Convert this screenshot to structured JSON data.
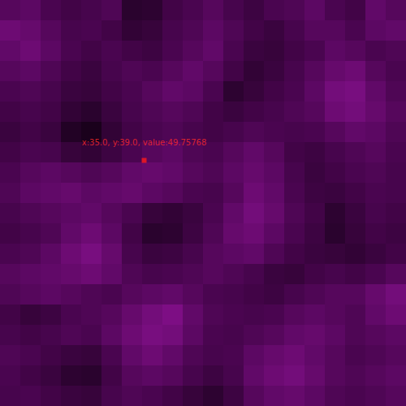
{
  "chart_data": {
    "type": "heatmap",
    "xlim": [
      -0.5,
      99.5
    ],
    "ylim": [
      -0.5,
      99.5
    ],
    "tick_labels": false,
    "grid": false,
    "color_range": [
      0,
      80
    ],
    "cells": [
      [
        45,
        48,
        40,
        35,
        38,
        42,
        20,
        22,
        35,
        40,
        45,
        38,
        32,
        40,
        42,
        48,
        40,
        35,
        50,
        45
      ],
      [
        55,
        52,
        45,
        38,
        40,
        35,
        25,
        28,
        38,
        42,
        48,
        42,
        35,
        30,
        38,
        45,
        45,
        40,
        48,
        50
      ],
      [
        50,
        55,
        48,
        40,
        35,
        40,
        35,
        32,
        40,
        45,
        50,
        40,
        30,
        28,
        35,
        40,
        48,
        45,
        40,
        42
      ],
      [
        45,
        48,
        42,
        35,
        30,
        38,
        42,
        40,
        45,
        50,
        45,
        35,
        25,
        30,
        38,
        45,
        52,
        55,
        45,
        40
      ],
      [
        40,
        42,
        38,
        30,
        28,
        35,
        40,
        45,
        50,
        48,
        40,
        22,
        28,
        35,
        40,
        48,
        58,
        60,
        50,
        42
      ],
      [
        35,
        38,
        35,
        25,
        20,
        30,
        38,
        42,
        45,
        42,
        35,
        30,
        35,
        38,
        42,
        45,
        55,
        58,
        52,
        45
      ],
      [
        30,
        35,
        30,
        15,
        10,
        25,
        35,
        40,
        42,
        38,
        35,
        38,
        42,
        40,
        38,
        40,
        45,
        50,
        48,
        42
      ],
      [
        35,
        40,
        38,
        28,
        25,
        32,
        40,
        45,
        48,
        42,
        40,
        45,
        50,
        45,
        35,
        32,
        38,
        42,
        45,
        40
      ],
      [
        40,
        45,
        48,
        45,
        42,
        45,
        50,
        52,
        50,
        45,
        42,
        48,
        52,
        48,
        38,
        30,
        35,
        40,
        42,
        38
      ],
      [
        42,
        48,
        50,
        52,
        48,
        50,
        52,
        48,
        45,
        40,
        38,
        45,
        55,
        50,
        40,
        32,
        30,
        35,
        40,
        38
      ],
      [
        38,
        42,
        45,
        48,
        50,
        45,
        40,
        28,
        25,
        30,
        40,
        50,
        58,
        52,
        42,
        35,
        22,
        30,
        38,
        35
      ],
      [
        35,
        38,
        42,
        50,
        55,
        48,
        35,
        20,
        22,
        32,
        42,
        52,
        55,
        48,
        40,
        32,
        20,
        28,
        35,
        32
      ],
      [
        40,
        42,
        48,
        55,
        60,
        52,
        38,
        30,
        32,
        38,
        45,
        48,
        50,
        42,
        35,
        30,
        28,
        25,
        30,
        35
      ],
      [
        45,
        48,
        50,
        52,
        55,
        50,
        42,
        38,
        40,
        42,
        45,
        42,
        38,
        30,
        28,
        35,
        38,
        35,
        40,
        45
      ],
      [
        42,
        45,
        48,
        45,
        42,
        40,
        45,
        48,
        50,
        45,
        40,
        38,
        35,
        32,
        38,
        42,
        45,
        45,
        52,
        58
      ],
      [
        35,
        28,
        32,
        40,
        42,
        45,
        52,
        58,
        62,
        50,
        42,
        40,
        38,
        40,
        45,
        48,
        45,
        42,
        50,
        55
      ],
      [
        38,
        35,
        38,
        42,
        40,
        48,
        55,
        60,
        58,
        48,
        40,
        38,
        42,
        45,
        50,
        52,
        48,
        42,
        45,
        48
      ],
      [
        42,
        40,
        35,
        30,
        28,
        40,
        50,
        55,
        50,
        42,
        38,
        40,
        48,
        52,
        55,
        50,
        45,
        40,
        42,
        45
      ],
      [
        40,
        35,
        30,
        22,
        20,
        35,
        45,
        48,
        45,
        38,
        32,
        38,
        50,
        55,
        58,
        52,
        45,
        42,
        45,
        48
      ],
      [
        38,
        40,
        35,
        30,
        28,
        38,
        42,
        40,
        35,
        28,
        22,
        32,
        45,
        50,
        52,
        48,
        42,
        40,
        42,
        45
      ]
    ],
    "annotations": [
      {
        "x": 35,
        "y": 39,
        "value": 49.75768,
        "text": "x:35.0, y:39.0, value:49.75768"
      }
    ]
  }
}
